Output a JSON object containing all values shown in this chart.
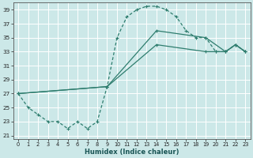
{
  "xlabel": "Humidex (Indice chaleur)",
  "bg_color": "#cce8e8",
  "grid_color": "#ffffff",
  "line_color": "#2e7d6e",
  "xlim": [
    -0.5,
    23.5
  ],
  "ylim": [
    20.5,
    40.0
  ],
  "yticks": [
    21,
    23,
    25,
    27,
    29,
    31,
    33,
    35,
    37,
    39
  ],
  "xticks": [
    0,
    1,
    2,
    3,
    4,
    5,
    6,
    7,
    8,
    9,
    10,
    11,
    12,
    13,
    14,
    15,
    16,
    17,
    18,
    19,
    20,
    21,
    22,
    23
  ],
  "curve_x": [
    0,
    1,
    2,
    3,
    4,
    5,
    6,
    7,
    8,
    9,
    10,
    11,
    12,
    13,
    14,
    15,
    16,
    17,
    18,
    19,
    20,
    21,
    22,
    23
  ],
  "curve_y": [
    27,
    25,
    24,
    23,
    23,
    22,
    23,
    22,
    23,
    28,
    35,
    38,
    39,
    39.5,
    39.5,
    39,
    38,
    36,
    35,
    35,
    33,
    33,
    34,
    33
  ],
  "linear1_x": [
    0,
    9,
    14,
    19,
    21,
    22,
    23
  ],
  "linear1_y": [
    27,
    28,
    36,
    35,
    33,
    34,
    33
  ],
  "linear2_x": [
    0,
    9,
    14,
    19,
    20,
    21,
    22,
    23
  ],
  "linear2_y": [
    27,
    28,
    34,
    33,
    33,
    33,
    34,
    33
  ]
}
